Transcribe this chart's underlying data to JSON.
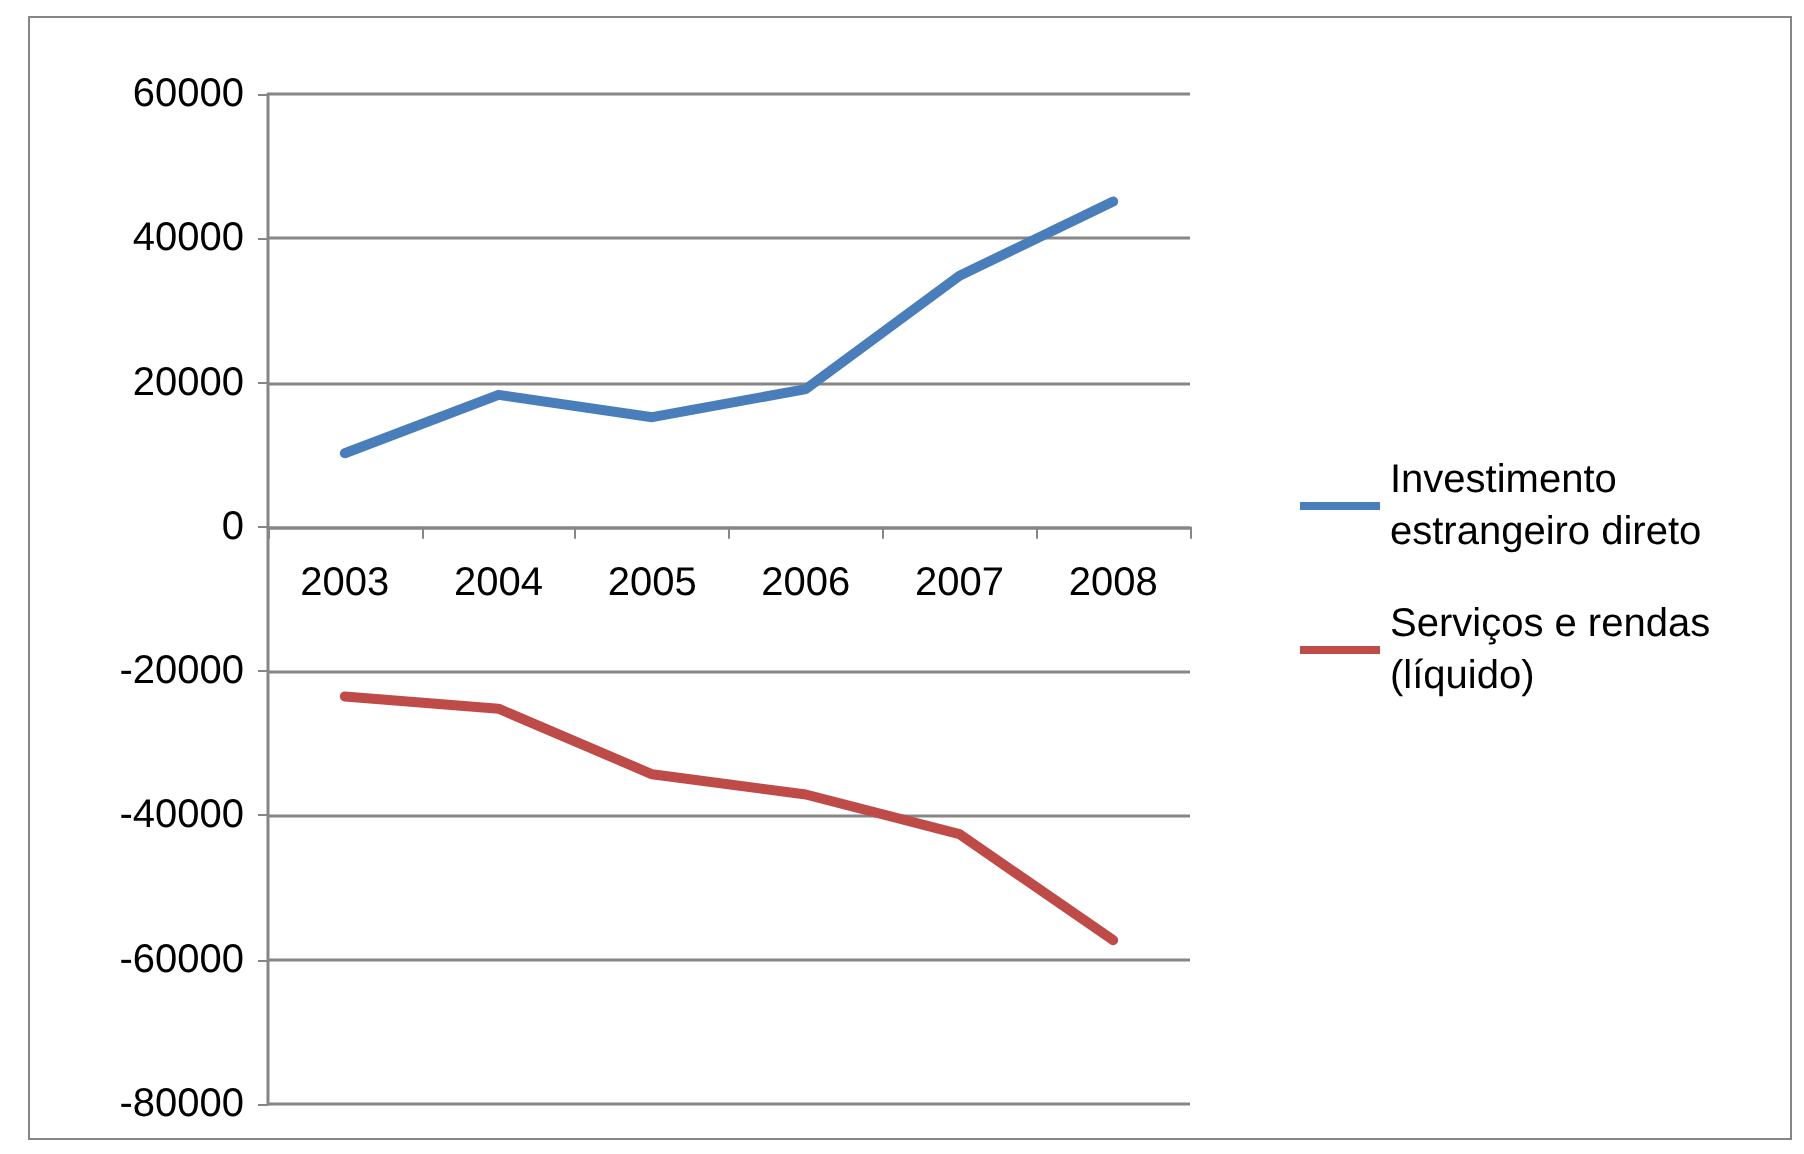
{
  "chart_data": {
    "type": "line",
    "categories": [
      "2003",
      "2004",
      "2005",
      "2006",
      "2007",
      "2008"
    ],
    "series": [
      {
        "name": "Investimento estrangeiro direto",
        "color": "#4a7ebb",
        "values": [
          10200,
          18300,
          15200,
          19100,
          34800,
          45100
        ]
      },
      {
        "name": "Serviços e rendas (líquido)",
        "color": "#be4b48",
        "values": [
          -23500,
          -25200,
          -34300,
          -37100,
          -42600,
          -57300
        ]
      }
    ],
    "ylim": [
      -80000,
      60000
    ],
    "yticks": [
      -80000,
      -60000,
      -40000,
      -20000,
      0,
      20000,
      40000,
      60000
    ],
    "grid": "y",
    "legend": "right",
    "marker": "none",
    "line_style": "solid"
  }
}
